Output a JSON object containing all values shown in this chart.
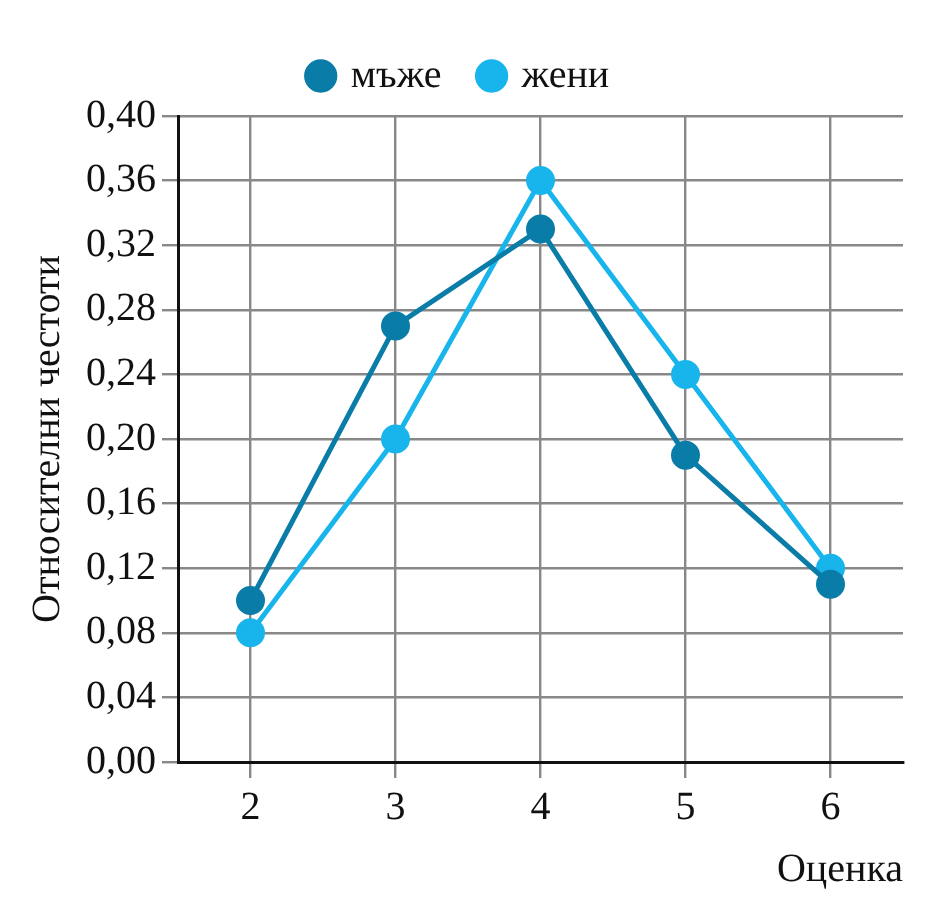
{
  "chart_data": {
    "type": "line",
    "xlabel": "Оценка",
    "ylabel": "Относителни честоти",
    "x": [
      2,
      3,
      4,
      5,
      6
    ],
    "xlim": [
      1.5,
      6.5
    ],
    "xticks": [
      2,
      3,
      4,
      5,
      6
    ],
    "ylim": [
      0,
      0.4
    ],
    "yticks": [
      {
        "value": 0,
        "label": "0,00"
      },
      {
        "value": 0.04,
        "label": "0,04"
      },
      {
        "value": 0.08,
        "label": "0,08"
      },
      {
        "value": 0.12,
        "label": "0,12"
      },
      {
        "value": 0.16,
        "label": "0,16"
      },
      {
        "value": 0.2,
        "label": "0,20"
      },
      {
        "value": 0.24,
        "label": "0,24"
      },
      {
        "value": 0.28,
        "label": "0,28"
      },
      {
        "value": 0.32,
        "label": "0,32"
      },
      {
        "value": 0.36,
        "label": "0,36"
      },
      {
        "value": 0.4,
        "label": "0,40"
      }
    ],
    "series": [
      {
        "name": "мъже",
        "color": "#0a7ca8",
        "values": [
          0.1,
          0.27,
          0.33,
          0.19,
          0.11
        ]
      },
      {
        "name": "жени",
        "color": "#18b4ec",
        "values": [
          0.08,
          0.2,
          0.36,
          0.24,
          0.12
        ]
      }
    ],
    "grid": true,
    "legend": "top",
    "marker": "circle",
    "line_style": "solid"
  }
}
